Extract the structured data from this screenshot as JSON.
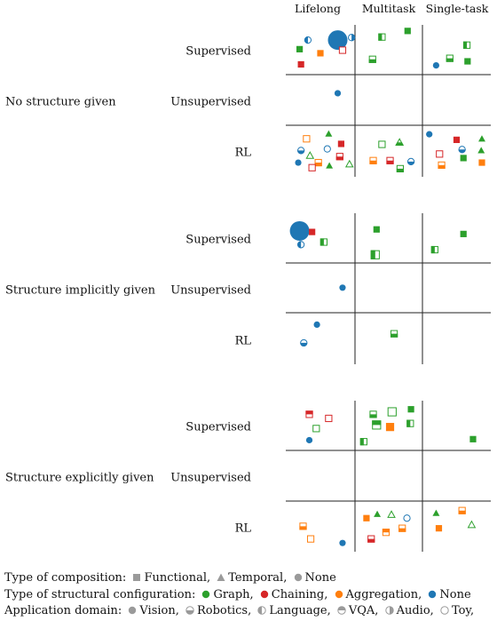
{
  "chart_data": {
    "type": "scatter",
    "columns": [
      "Lifelong",
      "Multitask",
      "Single-task"
    ],
    "blocks": [
      {
        "label": "No structure given",
        "rows": [
          "Supervised",
          "Unsupervised",
          "RL"
        ]
      },
      {
        "label": "Structure implicitly given",
        "rows": [
          "Supervised",
          "Unsupervised",
          "RL"
        ]
      },
      {
        "label": "Structure explicitly given",
        "rows": [
          "Supervised",
          "Unsupervised",
          "RL"
        ]
      }
    ],
    "points": [
      {
        "block": 0,
        "row": 0,
        "col": 0,
        "x": 0.75,
        "y": 0.3,
        "shape": "circle",
        "color": "blue",
        "fill": "full",
        "big": true
      },
      {
        "block": 0,
        "row": 0,
        "col": 0,
        "x": 0.32,
        "y": 0.3,
        "shape": "circle",
        "color": "blue",
        "fill": "left"
      },
      {
        "block": 0,
        "row": 0,
        "col": 0,
        "x": 0.95,
        "y": 0.25,
        "shape": "circle",
        "color": "blue",
        "fill": "right"
      },
      {
        "block": 0,
        "row": 0,
        "col": 0,
        "x": 0.2,
        "y": 0.48,
        "shape": "square",
        "color": "green",
        "fill": "full"
      },
      {
        "block": 0,
        "row": 0,
        "col": 0,
        "x": 0.5,
        "y": 0.56,
        "shape": "square",
        "color": "orange",
        "fill": "full"
      },
      {
        "block": 0,
        "row": 0,
        "col": 0,
        "x": 0.82,
        "y": 0.5,
        "shape": "square",
        "color": "red",
        "fill": "none"
      },
      {
        "block": 0,
        "row": 0,
        "col": 0,
        "x": 0.22,
        "y": 0.78,
        "shape": "square",
        "color": "red",
        "fill": "full"
      },
      {
        "block": 0,
        "row": 0,
        "col": 1,
        "x": 0.4,
        "y": 0.24,
        "shape": "square",
        "color": "green",
        "fill": "left"
      },
      {
        "block": 0,
        "row": 0,
        "col": 1,
        "x": 0.78,
        "y": 0.12,
        "shape": "square",
        "color": "green",
        "fill": "full"
      },
      {
        "block": 0,
        "row": 0,
        "col": 1,
        "x": 0.26,
        "y": 0.68,
        "shape": "square",
        "color": "green",
        "fill": "bottom"
      },
      {
        "block": 0,
        "row": 0,
        "col": 2,
        "x": 0.65,
        "y": 0.4,
        "shape": "square",
        "color": "green",
        "fill": "left"
      },
      {
        "block": 0,
        "row": 0,
        "col": 2,
        "x": 0.4,
        "y": 0.66,
        "shape": "square",
        "color": "green",
        "fill": "bottom"
      },
      {
        "block": 0,
        "row": 0,
        "col": 2,
        "x": 0.66,
        "y": 0.72,
        "shape": "square",
        "color": "green",
        "fill": "full"
      },
      {
        "block": 0,
        "row": 0,
        "col": 2,
        "x": 0.2,
        "y": 0.8,
        "shape": "circle",
        "color": "blue",
        "fill": "full"
      },
      {
        "block": 0,
        "row": 1,
        "col": 0,
        "x": 0.75,
        "y": 0.35,
        "shape": "circle",
        "color": "blue",
        "fill": "full"
      },
      {
        "block": 0,
        "row": 2,
        "col": 0,
        "x": 0.3,
        "y": 0.25,
        "shape": "square",
        "color": "orange",
        "fill": "none"
      },
      {
        "block": 0,
        "row": 2,
        "col": 0,
        "x": 0.62,
        "y": 0.15,
        "shape": "triangle",
        "color": "green",
        "fill": "full"
      },
      {
        "block": 0,
        "row": 2,
        "col": 0,
        "x": 0.8,
        "y": 0.35,
        "shape": "square",
        "color": "red",
        "fill": "full"
      },
      {
        "block": 0,
        "row": 2,
        "col": 0,
        "x": 0.6,
        "y": 0.45,
        "shape": "circle",
        "color": "blue",
        "fill": "none"
      },
      {
        "block": 0,
        "row": 2,
        "col": 0,
        "x": 0.22,
        "y": 0.48,
        "shape": "circle",
        "color": "blue",
        "fill": "bottom"
      },
      {
        "block": 0,
        "row": 2,
        "col": 0,
        "x": 0.35,
        "y": 0.58,
        "shape": "triangle",
        "color": "green",
        "fill": "none"
      },
      {
        "block": 0,
        "row": 2,
        "col": 0,
        "x": 0.78,
        "y": 0.6,
        "shape": "square",
        "color": "red",
        "fill": "bottom"
      },
      {
        "block": 0,
        "row": 2,
        "col": 0,
        "x": 0.18,
        "y": 0.72,
        "shape": "circle",
        "color": "blue",
        "fill": "full"
      },
      {
        "block": 0,
        "row": 2,
        "col": 0,
        "x": 0.47,
        "y": 0.72,
        "shape": "square",
        "color": "orange",
        "fill": "bottom"
      },
      {
        "block": 0,
        "row": 2,
        "col": 0,
        "x": 0.38,
        "y": 0.82,
        "shape": "square",
        "color": "red",
        "fill": "none"
      },
      {
        "block": 0,
        "row": 2,
        "col": 0,
        "x": 0.63,
        "y": 0.78,
        "shape": "triangle",
        "color": "green",
        "fill": "full"
      },
      {
        "block": 0,
        "row": 2,
        "col": 0,
        "x": 0.92,
        "y": 0.75,
        "shape": "triangle",
        "color": "green",
        "fill": "none"
      },
      {
        "block": 0,
        "row": 2,
        "col": 1,
        "x": 0.4,
        "y": 0.36,
        "shape": "square",
        "color": "green",
        "fill": "none"
      },
      {
        "block": 0,
        "row": 2,
        "col": 1,
        "x": 0.66,
        "y": 0.32,
        "shape": "triangle",
        "color": "green",
        "fill": "bottom"
      },
      {
        "block": 0,
        "row": 2,
        "col": 1,
        "x": 0.27,
        "y": 0.68,
        "shape": "square",
        "color": "orange",
        "fill": "bottom"
      },
      {
        "block": 0,
        "row": 2,
        "col": 1,
        "x": 0.52,
        "y": 0.68,
        "shape": "square",
        "color": "red",
        "fill": "bottom"
      },
      {
        "block": 0,
        "row": 2,
        "col": 1,
        "x": 0.67,
        "y": 0.84,
        "shape": "square",
        "color": "green",
        "fill": "bottom"
      },
      {
        "block": 0,
        "row": 2,
        "col": 1,
        "x": 0.83,
        "y": 0.7,
        "shape": "circle",
        "color": "blue",
        "fill": "bottom"
      },
      {
        "block": 0,
        "row": 2,
        "col": 2,
        "x": 0.1,
        "y": 0.16,
        "shape": "circle",
        "color": "blue",
        "fill": "full"
      },
      {
        "block": 0,
        "row": 2,
        "col": 2,
        "x": 0.5,
        "y": 0.27,
        "shape": "square",
        "color": "red",
        "fill": "full"
      },
      {
        "block": 0,
        "row": 2,
        "col": 2,
        "x": 0.87,
        "y": 0.25,
        "shape": "triangle",
        "color": "green",
        "fill": "full"
      },
      {
        "block": 0,
        "row": 2,
        "col": 2,
        "x": 0.58,
        "y": 0.46,
        "shape": "circle",
        "color": "blue",
        "fill": "bottom"
      },
      {
        "block": 0,
        "row": 2,
        "col": 2,
        "x": 0.86,
        "y": 0.48,
        "shape": "triangle",
        "color": "green",
        "fill": "full"
      },
      {
        "block": 0,
        "row": 2,
        "col": 2,
        "x": 0.25,
        "y": 0.55,
        "shape": "square",
        "color": "red",
        "fill": "none"
      },
      {
        "block": 0,
        "row": 2,
        "col": 2,
        "x": 0.6,
        "y": 0.63,
        "shape": "square",
        "color": "green",
        "fill": "full"
      },
      {
        "block": 0,
        "row": 2,
        "col": 2,
        "x": 0.28,
        "y": 0.77,
        "shape": "square",
        "color": "orange",
        "fill": "bottom"
      },
      {
        "block": 0,
        "row": 2,
        "col": 2,
        "x": 0.87,
        "y": 0.72,
        "shape": "square",
        "color": "orange",
        "fill": "full"
      },
      {
        "block": 1,
        "row": 0,
        "col": 0,
        "x": 0.2,
        "y": 0.35,
        "shape": "circle",
        "color": "blue",
        "fill": "full",
        "big": true
      },
      {
        "block": 1,
        "row": 0,
        "col": 0,
        "x": 0.38,
        "y": 0.37,
        "shape": "square",
        "color": "red",
        "fill": "full"
      },
      {
        "block": 1,
        "row": 0,
        "col": 0,
        "x": 0.22,
        "y": 0.62,
        "shape": "circle",
        "color": "blue",
        "fill": "left"
      },
      {
        "block": 1,
        "row": 0,
        "col": 0,
        "x": 0.55,
        "y": 0.57,
        "shape": "square",
        "color": "green",
        "fill": "left"
      },
      {
        "block": 1,
        "row": 0,
        "col": 1,
        "x": 0.32,
        "y": 0.32,
        "shape": "square",
        "color": "green",
        "fill": "full"
      },
      {
        "block": 1,
        "row": 0,
        "col": 1,
        "x": 0.3,
        "y": 0.82,
        "shape": "square",
        "color": "green",
        "fill": "left",
        "large": true
      },
      {
        "block": 1,
        "row": 0,
        "col": 2,
        "x": 0.6,
        "y": 0.41,
        "shape": "square",
        "color": "green",
        "fill": "full"
      },
      {
        "block": 1,
        "row": 0,
        "col": 2,
        "x": 0.18,
        "y": 0.72,
        "shape": "square",
        "color": "green",
        "fill": "left"
      },
      {
        "block": 1,
        "row": 1,
        "col": 0,
        "x": 0.82,
        "y": 0.47,
        "shape": "circle",
        "color": "blue",
        "fill": "full"
      },
      {
        "block": 1,
        "row": 2,
        "col": 0,
        "x": 0.45,
        "y": 0.2,
        "shape": "circle",
        "color": "blue",
        "fill": "full"
      },
      {
        "block": 1,
        "row": 2,
        "col": 0,
        "x": 0.26,
        "y": 0.56,
        "shape": "circle",
        "color": "blue",
        "fill": "bottom"
      },
      {
        "block": 1,
        "row": 2,
        "col": 1,
        "x": 0.58,
        "y": 0.38,
        "shape": "square",
        "color": "green",
        "fill": "bottom"
      },
      {
        "block": 2,
        "row": 0,
        "col": 0,
        "x": 0.34,
        "y": 0.27,
        "shape": "square",
        "color": "red",
        "fill": "top"
      },
      {
        "block": 2,
        "row": 0,
        "col": 0,
        "x": 0.62,
        "y": 0.35,
        "shape": "square",
        "color": "red",
        "fill": "none"
      },
      {
        "block": 2,
        "row": 0,
        "col": 0,
        "x": 0.44,
        "y": 0.55,
        "shape": "square",
        "color": "green",
        "fill": "none"
      },
      {
        "block": 2,
        "row": 0,
        "col": 0,
        "x": 0.34,
        "y": 0.78,
        "shape": "circle",
        "color": "blue",
        "fill": "full"
      },
      {
        "block": 2,
        "row": 0,
        "col": 1,
        "x": 0.27,
        "y": 0.27,
        "shape": "square",
        "color": "green",
        "fill": "bottom"
      },
      {
        "block": 2,
        "row": 0,
        "col": 1,
        "x": 0.55,
        "y": 0.22,
        "shape": "square",
        "color": "green",
        "fill": "none",
        "large": true
      },
      {
        "block": 2,
        "row": 0,
        "col": 1,
        "x": 0.83,
        "y": 0.17,
        "shape": "square",
        "color": "green",
        "fill": "full"
      },
      {
        "block": 2,
        "row": 0,
        "col": 1,
        "x": 0.32,
        "y": 0.48,
        "shape": "square",
        "color": "green",
        "fill": "top",
        "large": true
      },
      {
        "block": 2,
        "row": 0,
        "col": 1,
        "x": 0.52,
        "y": 0.52,
        "shape": "square",
        "color": "orange",
        "fill": "full",
        "large": true
      },
      {
        "block": 2,
        "row": 0,
        "col": 1,
        "x": 0.82,
        "y": 0.45,
        "shape": "square",
        "color": "green",
        "fill": "left"
      },
      {
        "block": 2,
        "row": 0,
        "col": 1,
        "x": 0.13,
        "y": 0.81,
        "shape": "square",
        "color": "green",
        "fill": "left"
      },
      {
        "block": 2,
        "row": 0,
        "col": 2,
        "x": 0.74,
        "y": 0.76,
        "shape": "square",
        "color": "green",
        "fill": "full"
      },
      {
        "block": 2,
        "row": 2,
        "col": 0,
        "x": 0.25,
        "y": 0.48,
        "shape": "square",
        "color": "orange",
        "fill": "bottom"
      },
      {
        "block": 2,
        "row": 2,
        "col": 0,
        "x": 0.36,
        "y": 0.73,
        "shape": "square",
        "color": "orange",
        "fill": "none"
      },
      {
        "block": 2,
        "row": 2,
        "col": 0,
        "x": 0.82,
        "y": 0.81,
        "shape": "circle",
        "color": "blue",
        "fill": "full"
      },
      {
        "block": 2,
        "row": 2,
        "col": 1,
        "x": 0.17,
        "y": 0.32,
        "shape": "square",
        "color": "orange",
        "fill": "full"
      },
      {
        "block": 2,
        "row": 2,
        "col": 1,
        "x": 0.33,
        "y": 0.24,
        "shape": "triangle",
        "color": "green",
        "fill": "full"
      },
      {
        "block": 2,
        "row": 2,
        "col": 1,
        "x": 0.54,
        "y": 0.25,
        "shape": "triangle",
        "color": "green",
        "fill": "none"
      },
      {
        "block": 2,
        "row": 2,
        "col": 1,
        "x": 0.77,
        "y": 0.32,
        "shape": "circle",
        "color": "blue",
        "fill": "none"
      },
      {
        "block": 2,
        "row": 2,
        "col": 1,
        "x": 0.7,
        "y": 0.52,
        "shape": "square",
        "color": "orange",
        "fill": "bottom"
      },
      {
        "block": 2,
        "row": 2,
        "col": 1,
        "x": 0.46,
        "y": 0.6,
        "shape": "square",
        "color": "orange",
        "fill": "top"
      },
      {
        "block": 2,
        "row": 2,
        "col": 1,
        "x": 0.24,
        "y": 0.73,
        "shape": "square",
        "color": "red",
        "fill": "bottom"
      },
      {
        "block": 2,
        "row": 2,
        "col": 2,
        "x": 0.2,
        "y": 0.22,
        "shape": "triangle",
        "color": "green",
        "fill": "full"
      },
      {
        "block": 2,
        "row": 2,
        "col": 2,
        "x": 0.58,
        "y": 0.17,
        "shape": "square",
        "color": "orange",
        "fill": "bottom"
      },
      {
        "block": 2,
        "row": 2,
        "col": 2,
        "x": 0.72,
        "y": 0.45,
        "shape": "triangle",
        "color": "green",
        "fill": "none"
      },
      {
        "block": 2,
        "row": 2,
        "col": 2,
        "x": 0.24,
        "y": 0.52,
        "shape": "square",
        "color": "orange",
        "fill": "full"
      }
    ]
  },
  "colors": {
    "green": "#2ca02c",
    "red": "#d62728",
    "orange": "#ff7f0e",
    "blue": "#1f77b4",
    "gray": "#9a9a9a"
  },
  "legend": {
    "composition": {
      "title": "Type of composition:",
      "items": [
        "Functional,",
        "Temporal,",
        "None"
      ]
    },
    "configuration": {
      "title": "Type of structural configuration:",
      "items": [
        "Graph,",
        "Chaining,",
        "Aggregation,",
        "None"
      ]
    },
    "domain": {
      "title": "Application domain:",
      "items": [
        "Vision,",
        "Robotics,",
        "Language,",
        "VQA,",
        "Audio,",
        "Toy,"
      ]
    }
  }
}
